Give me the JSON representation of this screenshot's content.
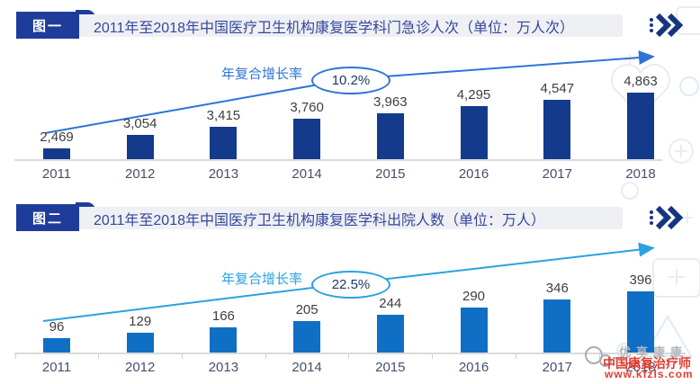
{
  "watermark": {
    "brand": "优享康康",
    "line1": "中国康复治疗师",
    "line2": "www.kfzls.com",
    "red": "#E23B2E",
    "gray": "#B2B7BE"
  },
  "chart_data": [
    {
      "type": "bar",
      "figure_tag": "图一",
      "title": "2011年至2018年中国医疗卫生机构康复医学科门急诊人次（单位：万人次）",
      "growth_label": "年复合增长率",
      "growth_value": "10.2%",
      "categories": [
        "2011",
        "2012",
        "2013",
        "2014",
        "2015",
        "2016",
        "2017",
        "2018"
      ],
      "values": [
        2469,
        3054,
        3415,
        3760,
        3963,
        4295,
        4547,
        4863
      ],
      "value_labels": [
        "2,469",
        "3,054",
        "3,415",
        "3,760",
        "3,963",
        "4,295",
        "4,547",
        "4,863"
      ],
      "ylim": [
        2000,
        5100
      ],
      "xlabel": "",
      "ylabel": "",
      "grid": false,
      "legend": "none",
      "bar_color": "#143A8C",
      "trend_color": "#2E74D6"
    },
    {
      "type": "bar",
      "figure_tag": "图二",
      "title": "2011年至2018年中国医疗卫生机构康复医学科出院人数（单位：万人）",
      "growth_label": "年复合增长率",
      "growth_value": "22.5%",
      "categories": [
        "2011",
        "2012",
        "2013",
        "2014",
        "2015",
        "2016",
        "2017",
        "2018"
      ],
      "values": [
        96,
        129,
        166,
        205,
        244,
        290,
        346,
        396
      ],
      "value_labels": [
        "96",
        "129",
        "166",
        "205",
        "244",
        "290",
        "346",
        "396"
      ],
      "ylim": [
        0,
        460
      ],
      "xlabel": "",
      "ylabel": "",
      "grid": false,
      "legend": "none",
      "bar_color": "#0F6FC5",
      "trend_color": "#2BA2DF"
    }
  ]
}
